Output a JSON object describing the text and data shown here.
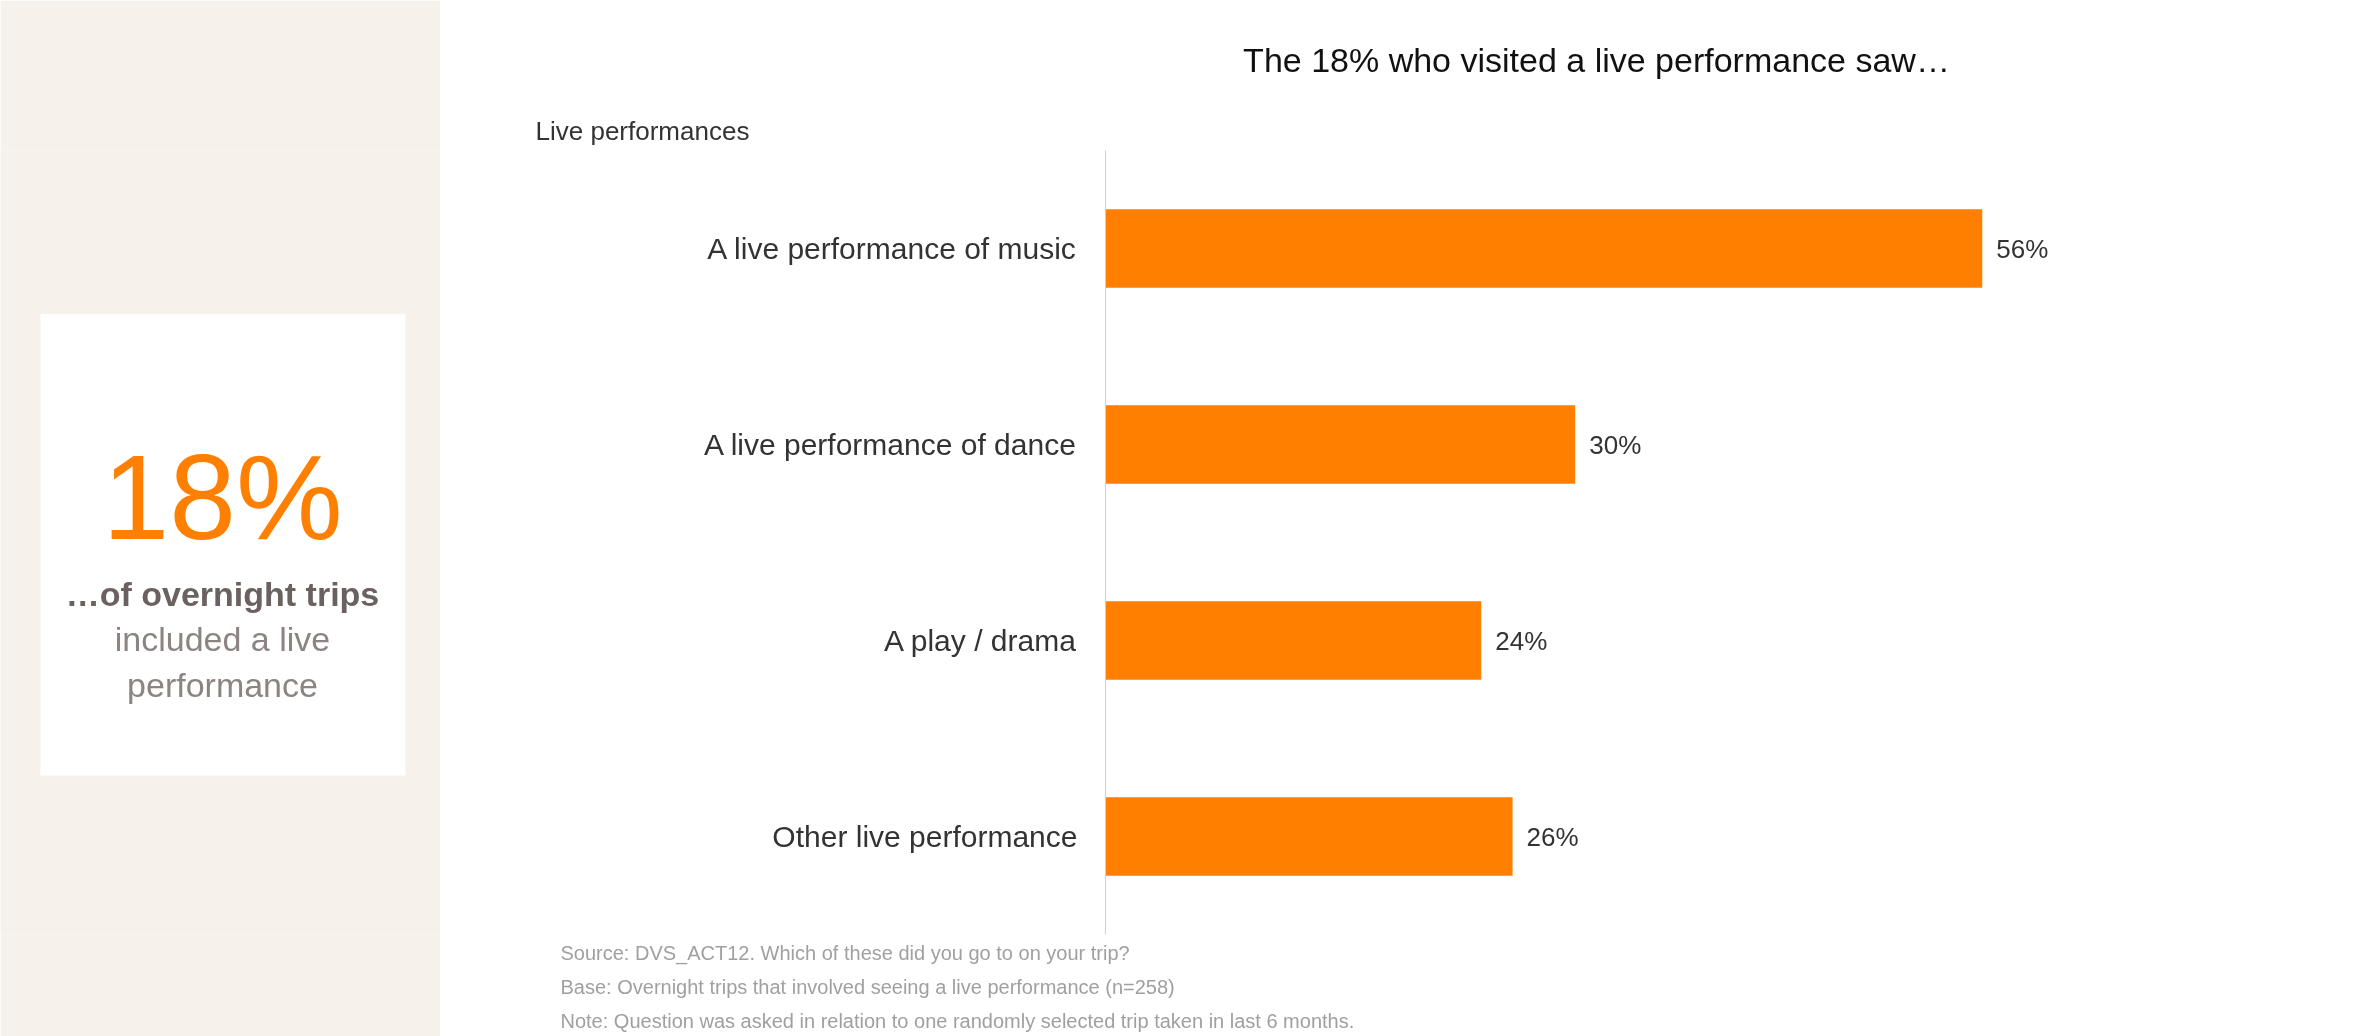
{
  "chart_data": {
    "type": "bar",
    "orientation": "horizontal",
    "title": "The 18% who visited a live performance saw…",
    "categories": [
      "A live performance of music",
      "A live performance of dance",
      "A play / drama",
      "Other live performance"
    ],
    "values": [
      56,
      30,
      24,
      26
    ],
    "color": "#ff8000",
    "value_labels": [
      "56%",
      "30%",
      "24%",
      "26%"
    ],
    "grid": false,
    "annotations": [
      "Live performances",
      "18%",
      "…of overnight trips",
      "included a live performance",
      "Source: DVS_ACT12. Which of these did you go to on your trip?",
      "Base: Overnight trips that involved seeing a live performance (n=258)",
      "Note: Question was asked in relation to one randomly selected trip taken in last 6 months."
    ]
  }
}
